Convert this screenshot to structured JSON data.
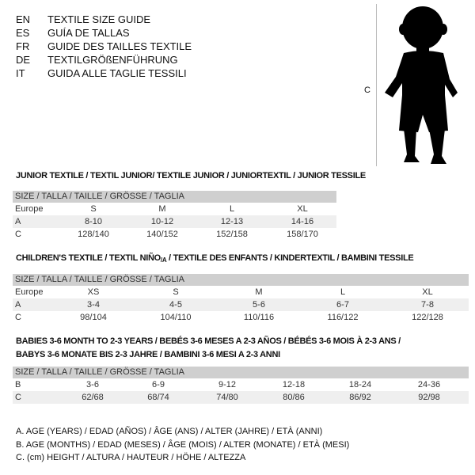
{
  "header": {
    "languages": [
      {
        "code": "EN",
        "title": "TEXTILE SIZE GUIDE"
      },
      {
        "code": "ES",
        "title": "GUÍA DE TALLAS"
      },
      {
        "code": "FR",
        "title": "GUIDE DES TAILLES TEXTILE"
      },
      {
        "code": "DE",
        "title": "TEXTILGRÖßENFÜHRUNG"
      },
      {
        "code": "IT",
        "title": "GUIDA ALLE TAGLIE TESSILI"
      }
    ]
  },
  "figure": {
    "icon": "child-silhouette-icon",
    "measure_label": "C"
  },
  "size_header": "SIZE / TALLA / TAILLE / GRÖSSE / TAGLIA",
  "junior": {
    "title": "JUNIOR TEXTILE / TEXTIL JUNIOR/ TEXTILE JUNIOR / JUNIORTEXTIL / JUNIOR TESSILE",
    "rows": [
      {
        "label": "Europe",
        "values": [
          "S",
          "M",
          "L",
          "XL"
        ]
      },
      {
        "label": "A",
        "values": [
          "8-10",
          "10-12",
          "12-13",
          "14-16"
        ]
      },
      {
        "label": "C",
        "values": [
          "128/140",
          "140/152",
          "152/158",
          "158/170"
        ]
      }
    ]
  },
  "children": {
    "title": "CHILDREN'S TEXTILE / TEXTIL NIÑO/A / TEXTILE DES ENFANTS / KINDERTEXTIL / BAMBINI TESSILE",
    "rows": [
      {
        "label": "Europe",
        "values": [
          "XS",
          "S",
          "M",
          "L",
          "XL"
        ]
      },
      {
        "label": "A",
        "values": [
          "3-4",
          "4-5",
          "5-6",
          "6-7",
          "7-8"
        ]
      },
      {
        "label": "C",
        "values": [
          "98/104",
          "104/110",
          "110/116",
          "116/122",
          "122/128"
        ]
      }
    ]
  },
  "babies": {
    "title_line1": "BABIES 3-6 MONTH TO 2-3 YEARS / BEBÉS 3-6 MESES A 2-3 AÑOS / BÉBÉS 3-6 MOIS À 2-3 ANS /",
    "title_line2": "BABYS 3-6 MONATE BIS 2-3 JAHRE / BAMBINI 3-6 MESI A 2-3 ANNI",
    "rows": [
      {
        "label": "B",
        "values": [
          "3-6",
          "6-9",
          "9-12",
          "12-18",
          "18-24",
          "24-36"
        ]
      },
      {
        "label": "C",
        "values": [
          "62/68",
          "68/74",
          "74/80",
          "80/86",
          "86/92",
          "92/98"
        ]
      }
    ]
  },
  "legend": [
    "A. AGE (YEARS) / EDAD (AÑOS) / ÂGE (ANS) / ALTER (JAHRE) / ETÀ (ANNI)",
    "B. AGE (MONTHS) / EDAD (MESES) / ÂGE (MOIS) / ALTER (MONATE) / ETÀ (MESI)",
    "C. (cm) HEIGHT / ALTURA / HAUTEUR / HÖHE / ALTEZZA"
  ]
}
